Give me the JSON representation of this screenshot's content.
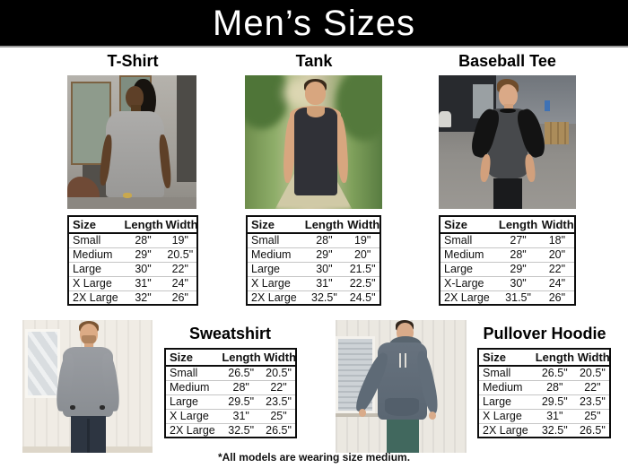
{
  "header": {
    "title": "Men’s Sizes"
  },
  "footer": {
    "note": "*All models are wearing size medium."
  },
  "columns": [
    "Size",
    "Length",
    "Width"
  ],
  "colors": {
    "banner_bg": "#000000",
    "banner_text": "#ffffff",
    "table_border": "#0d0d0d",
    "page_bg": "#ffffff"
  },
  "products": [
    {
      "title": "T-Shirt",
      "rows": [
        [
          "Small",
          "28\"",
          "19\""
        ],
        [
          "Medium",
          "29\"",
          "20.5\""
        ],
        [
          "Large",
          "30\"",
          "22\""
        ],
        [
          "X Large",
          "31\"",
          "24\""
        ],
        [
          "2X Large",
          "32\"",
          "26\""
        ]
      ]
    },
    {
      "title": "Tank",
      "rows": [
        [
          "Small",
          "28\"",
          "19\""
        ],
        [
          "Medium",
          "29\"",
          "20\""
        ],
        [
          "Large",
          "30\"",
          "21.5\""
        ],
        [
          "X Large",
          "31\"",
          "22.5\""
        ],
        [
          "2X Large",
          "32.5\"",
          "24.5\""
        ]
      ]
    },
    {
      "title": "Baseball Tee",
      "rows": [
        [
          "Small",
          "27\"",
          "18\""
        ],
        [
          "Medium",
          "28\"",
          "20\""
        ],
        [
          "Large",
          "29\"",
          "22\""
        ],
        [
          "X-Large",
          "30\"",
          "24\""
        ],
        [
          "2X Large",
          "31.5\"",
          "26\""
        ]
      ]
    },
    {
      "title": "Sweatshirt",
      "rows": [
        [
          "Small",
          "26.5\"",
          "20.5\""
        ],
        [
          "Medium",
          "28\"",
          "22\""
        ],
        [
          "Large",
          "29.5\"",
          "23.5\""
        ],
        [
          "X Large",
          "31\"",
          "25\""
        ],
        [
          "2X Large",
          "32.5\"",
          "26.5\""
        ]
      ]
    },
    {
      "title": "Pullover Hoodie",
      "rows": [
        [
          "Small",
          "26.5\"",
          "20.5\""
        ],
        [
          "Medium",
          "28\"",
          "22\""
        ],
        [
          "Large",
          "29.5\"",
          "23.5\""
        ],
        [
          "X Large",
          "31\"",
          "25\""
        ],
        [
          "2X Large",
          "32.5\"",
          "26.5\""
        ]
      ]
    }
  ]
}
